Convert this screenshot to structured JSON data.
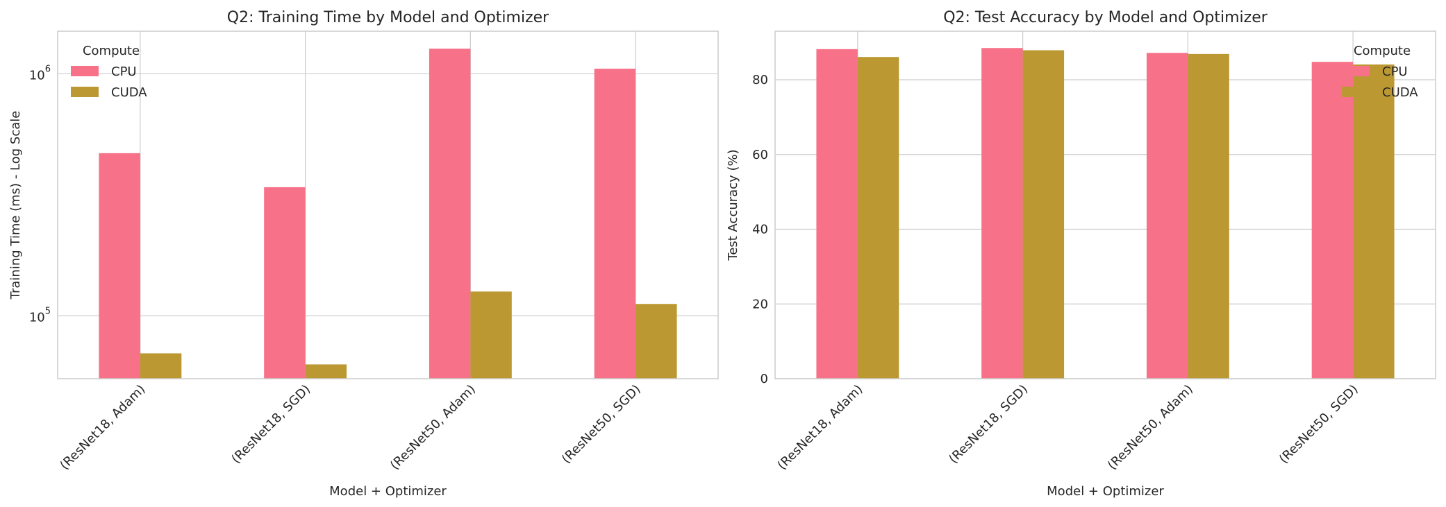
{
  "chart_data": [
    {
      "type": "bar",
      "title": "Q2: Training Time by Model and Optimizer",
      "xlabel": "Model + Optimizer",
      "ylabel": "Training Time (ms) - Log Scale",
      "yscale": "log",
      "ylim": [
        55000,
        1500000
      ],
      "ytick_values": [
        100000,
        1000000
      ],
      "ytick_base": "10",
      "ytick_exponents": [
        "5",
        "6"
      ],
      "grid": true,
      "categories": [
        "(ResNet18, Adam)",
        "(ResNet18, SGD)",
        "(ResNet50, Adam)",
        "(ResNet50, SGD)"
      ],
      "legend": {
        "title": "Compute",
        "placement": "upper-left"
      },
      "series": [
        {
          "name": "CPU",
          "color": "#f77189",
          "values": [
            470000,
            340000,
            1270000,
            1050000
          ]
        },
        {
          "name": "CUDA",
          "color": "#bb9832",
          "values": [
            70000,
            63000,
            126000,
            112000
          ]
        }
      ]
    },
    {
      "type": "bar",
      "title": "Q2: Test Accuracy by Model and Optimizer",
      "xlabel": "Model + Optimizer",
      "ylabel": "Test Accuracy (%)",
      "yscale": "linear",
      "ylim": [
        0,
        93
      ],
      "yticks": [
        0,
        20,
        40,
        60,
        80
      ],
      "grid": true,
      "categories": [
        "(ResNet18, Adam)",
        "(ResNet18, SGD)",
        "(ResNet50, Adam)",
        "(ResNet50, SGD)"
      ],
      "legend": {
        "title": "Compute",
        "placement": "upper-right"
      },
      "series": [
        {
          "name": "CPU",
          "color": "#f77189",
          "values": [
            88.2,
            88.5,
            87.2,
            84.8
          ]
        },
        {
          "name": "CUDA",
          "color": "#bb9832",
          "values": [
            86.1,
            87.9,
            86.9,
            84.1
          ]
        }
      ]
    }
  ]
}
